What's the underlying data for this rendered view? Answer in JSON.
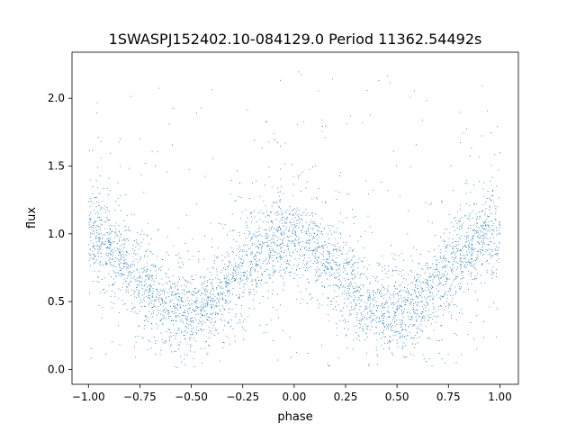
{
  "chart_data": {
    "type": "scatter",
    "title": "1SWASPJ152402.10-084129.0 Period 11362.54492s",
    "xlabel": "phase",
    "ylabel": "flux",
    "xlim": [
      -1.08,
      1.09
    ],
    "ylim": [
      -0.11,
      2.34
    ],
    "x_ticks": [
      -1.0,
      -0.75,
      -0.5,
      -0.25,
      0.0,
      0.25,
      0.5,
      0.75,
      1.0
    ],
    "x_tick_labels": [
      "−1.00",
      "−0.75",
      "−0.50",
      "−0.25",
      "0.00",
      "0.25",
      "0.50",
      "0.75",
      "1.00"
    ],
    "y_ticks": [
      0.0,
      0.5,
      1.0,
      1.5,
      2.0
    ],
    "y_tick_labels": [
      "0.0",
      "0.5",
      "1.0",
      "1.5",
      "2.0"
    ],
    "grid": false,
    "legend": "none",
    "marker_color": "#1f77b4",
    "series": [
      {
        "phase_range": [
          -1.0,
          1.0
        ],
        "flux_range": [
          0.0,
          2.2
        ],
        "approx_point_count": 40000,
        "curve_maxima": [
          {
            "phase": -0.95,
            "flux": 0.95
          },
          {
            "phase": 0.0,
            "flux": 0.98
          },
          {
            "phase": 1.0,
            "flux": 0.95
          }
        ],
        "curve_minima": [
          {
            "phase": -0.45,
            "flux": 0.42
          },
          {
            "phase": 0.55,
            "flux": 0.42
          }
        ]
      }
    ]
  }
}
